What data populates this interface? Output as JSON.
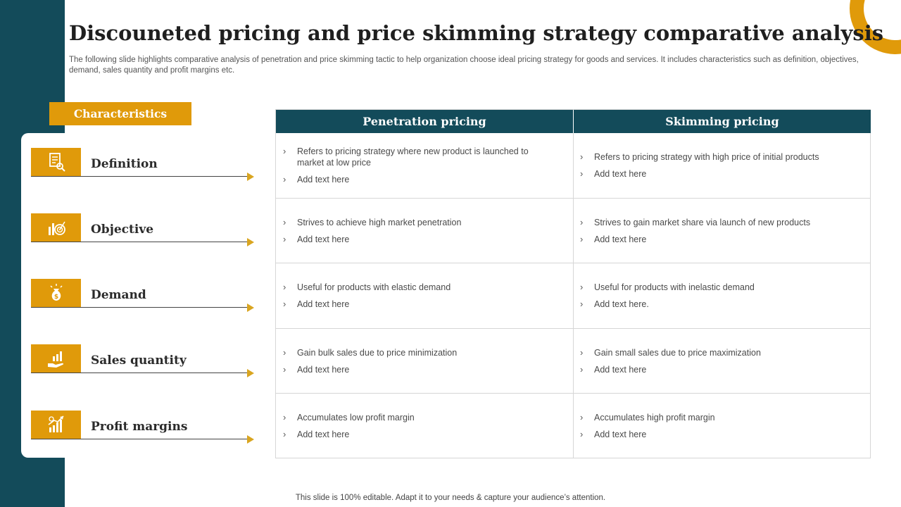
{
  "slide": {
    "title": "Discouneted pricing and price skimming strategy comparative analysis",
    "subtitle": "The following slide highlights comparative analysis of penetration and price skimming tactic to help organization choose ideal pricing strategy for goods and services. It includes characteristics such as definition, objectives, demand, sales quantity and profit margins etc.",
    "footer": "This slide is 100% editable. Adapt it to your needs & capture your audience’s attention."
  },
  "colors": {
    "teal": "#134b5a",
    "gold": "#e09a0a",
    "arrow": "#d9a520"
  },
  "characteristics": {
    "header": "Characteristics",
    "items": [
      {
        "label": "Definition",
        "icon": "document-search-icon"
      },
      {
        "label": "Objective",
        "icon": "target-chart-icon"
      },
      {
        "label": "Demand",
        "icon": "money-bag-icon"
      },
      {
        "label": "Sales quantity",
        "icon": "hand-growth-chart-icon"
      },
      {
        "label": "Profit margins",
        "icon": "rising-bar-chart-icon"
      }
    ]
  },
  "table": {
    "headers": [
      "Penetration pricing",
      "Skimming pricing"
    ],
    "rows": [
      {
        "penetration": [
          "Refers to pricing strategy where new product is launched to market at low price",
          "Add text here"
        ],
        "skimming": [
          "Refers to pricing strategy with high price of initial products",
          "Add text here"
        ]
      },
      {
        "penetration": [
          "Strives to achieve high market penetration",
          "Add text here"
        ],
        "skimming": [
          "Strives to gain market share via launch of new products",
          "Add text here"
        ]
      },
      {
        "penetration": [
          "Useful for products with elastic demand",
          "Add text here"
        ],
        "skimming": [
          "Useful for products with inelastic demand",
          "Add text here."
        ]
      },
      {
        "penetration": [
          "Gain bulk sales due to price minimization",
          "Add text here"
        ],
        "skimming": [
          "Gain small sales due to price maximization",
          "Add text here"
        ]
      },
      {
        "penetration": [
          "Accumulates low profit margin",
          "Add text here"
        ],
        "skimming": [
          "Accumulates high profit margin",
          "Add text here"
        ]
      }
    ]
  }
}
